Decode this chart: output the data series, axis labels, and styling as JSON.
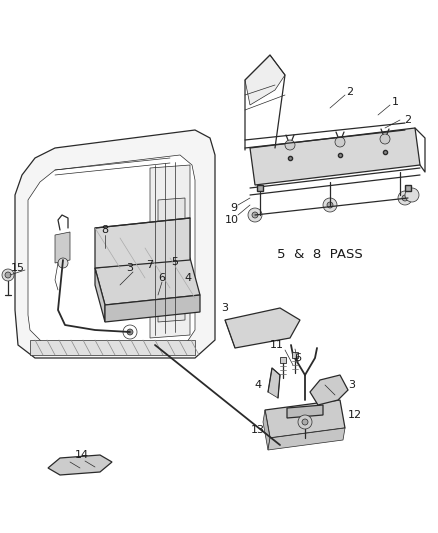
{
  "background_color": "#ffffff",
  "line_color": "#2a2a2a",
  "label_color": "#1a1a1a",
  "annotation_text": "5  &  8  PASS",
  "figsize": [
    4.39,
    5.33
  ],
  "dpi": 100,
  "lw_main": 0.9,
  "lw_thin": 0.5,
  "lw_thick": 1.3
}
